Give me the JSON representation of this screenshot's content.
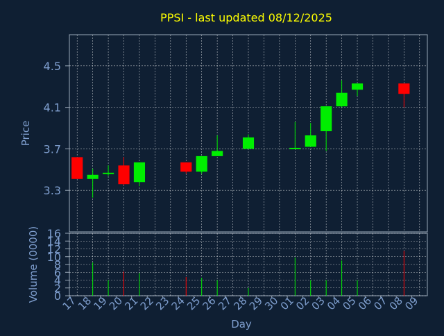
{
  "title": "PPSI - last updated 08/12/2025",
  "colors": {
    "background": "#0f1f33",
    "plot_bg": "#0f1f33",
    "title": "#ffff00",
    "axis_text": "#7f9fcf",
    "grid": "#ffffff",
    "up": "#00ee00",
    "down": "#ff0000"
  },
  "chart_data": [
    {
      "type": "candlestick",
      "title": "PPSI - last updated 08/12/2025",
      "ylabel": "Price",
      "ylim": [
        2.9,
        4.8
      ],
      "yticks": [
        "3.3",
        "3.7",
        "4.1",
        "4.5"
      ],
      "grid": true,
      "candles": [
        {
          "day": "17",
          "open": 3.62,
          "close": 3.41,
          "high": 3.62,
          "low": 3.41
        },
        {
          "day": "18",
          "open": 3.41,
          "close": 3.45,
          "high": 3.51,
          "low": 3.23
        },
        {
          "day": "19",
          "open": 3.46,
          "close": 3.47,
          "high": 3.54,
          "low": 3.44
        },
        {
          "day": "20",
          "open": 3.54,
          "close": 3.36,
          "high": 3.62,
          "low": 3.35
        },
        {
          "day": "21",
          "open": 3.38,
          "close": 3.57,
          "high": 3.57,
          "low": 3.34
        },
        {
          "day": "24",
          "open": 3.57,
          "close": 3.48,
          "high": 3.57,
          "low": 3.46
        },
        {
          "day": "25",
          "open": 3.48,
          "close": 3.63,
          "high": 3.63,
          "low": 3.46
        },
        {
          "day": "26",
          "open": 3.63,
          "close": 3.68,
          "high": 3.83,
          "low": 3.63
        },
        {
          "day": "28",
          "open": 3.7,
          "close": 3.81,
          "high": 3.84,
          "low": 3.7
        },
        {
          "day": "01",
          "open": 3.7,
          "close": 3.71,
          "high": 3.96,
          "low": 3.7
        },
        {
          "day": "02",
          "open": 3.72,
          "close": 3.83,
          "high": 3.95,
          "low": 3.72
        },
        {
          "day": "03",
          "open": 3.87,
          "close": 4.11,
          "high": 4.11,
          "low": 3.68
        },
        {
          "day": "04",
          "open": 4.11,
          "close": 4.24,
          "high": 4.36,
          "low": 4.1
        },
        {
          "day": "05",
          "open": 4.27,
          "close": 4.33,
          "high": 4.33,
          "low": 4.21
        },
        {
          "day": "08",
          "open": 4.33,
          "close": 4.23,
          "high": 4.33,
          "low": 4.1
        }
      ]
    },
    {
      "type": "bar",
      "ylabel": "Volume (0000)",
      "xlabel": "Day",
      "ylim": [
        0,
        16
      ],
      "yticks": [
        "0",
        "2",
        "4",
        "6",
        "8",
        "10",
        "12",
        "14",
        "16"
      ],
      "categories": [
        "17",
        "18",
        "19",
        "20",
        "21",
        "22",
        "23",
        "24",
        "25",
        "26",
        "27",
        "28",
        "29",
        "30",
        "01",
        "02",
        "03",
        "04",
        "05",
        "06",
        "07",
        "08",
        "09"
      ],
      "bars": [
        {
          "day": "18",
          "value": 8.5,
          "direction": "up"
        },
        {
          "day": "19",
          "value": 4.0,
          "direction": "up"
        },
        {
          "day": "20",
          "value": 6.2,
          "direction": "down"
        },
        {
          "day": "21",
          "value": 5.8,
          "direction": "up"
        },
        {
          "day": "24",
          "value": 4.8,
          "direction": "down"
        },
        {
          "day": "25",
          "value": 4.6,
          "direction": "up"
        },
        {
          "day": "26",
          "value": 4.0,
          "direction": "up"
        },
        {
          "day": "28",
          "value": 2.0,
          "direction": "up"
        },
        {
          "day": "01",
          "value": 9.8,
          "direction": "up"
        },
        {
          "day": "02",
          "value": 4.0,
          "direction": "up"
        },
        {
          "day": "03",
          "value": 4.0,
          "direction": "up"
        },
        {
          "day": "04",
          "value": 9.0,
          "direction": "up"
        },
        {
          "day": "05",
          "value": 4.0,
          "direction": "up"
        },
        {
          "day": "08",
          "value": 11.5,
          "direction": "down"
        }
      ]
    }
  ]
}
